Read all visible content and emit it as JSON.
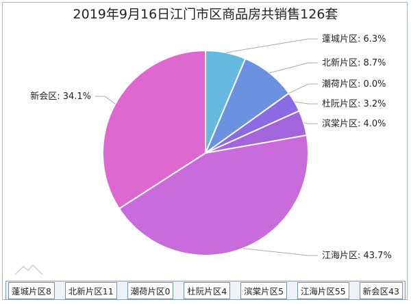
{
  "title": "2019年9月16日江门市区商品房共销售126套",
  "chart_data": {
    "type": "pie",
    "title": "2019年9月16日江门市区商品房共销售126套",
    "slices": [
      {
        "name": "蓬城片区",
        "units": 8,
        "percent": 6.3,
        "label": "蓬城片区: 6.3%",
        "color": "#66b9de"
      },
      {
        "name": "北新片区",
        "units": 11,
        "percent": 8.7,
        "label": "北新片区: 8.7%",
        "color": "#6a92e0"
      },
      {
        "name": "潮荷片区",
        "units": 0,
        "percent": 0.0,
        "label": "潮荷片区: 0.0%",
        "color": "#7a7ee6"
      },
      {
        "name": "杜阮片区",
        "units": 4,
        "percent": 3.2,
        "label": "杜阮片区: 3.2%",
        "color": "#8c6ae4"
      },
      {
        "name": "滨棠片区",
        "units": 5,
        "percent": 4.0,
        "label": "滨棠片区: 4.0%",
        "color": "#a465dc"
      },
      {
        "name": "江海片区",
        "units": 55,
        "percent": 43.7,
        "label": "江海片区: 43.7%",
        "color": "#c96bdc"
      },
      {
        "name": "新会区",
        "units": 43,
        "percent": 34.1,
        "label": "新会区: 34.1%",
        "color": "#dd68cf"
      }
    ]
  },
  "legend": {
    "items": [
      "蓬城片区8",
      "北新片区11",
      "潮荷片区0",
      "杜阮片区4",
      "滨棠片区5",
      "江海片区55",
      "新会区43"
    ]
  },
  "colors": {
    "border": "#9fb6d6",
    "leader_line": "#aaaaaa",
    "text": "#222222"
  }
}
